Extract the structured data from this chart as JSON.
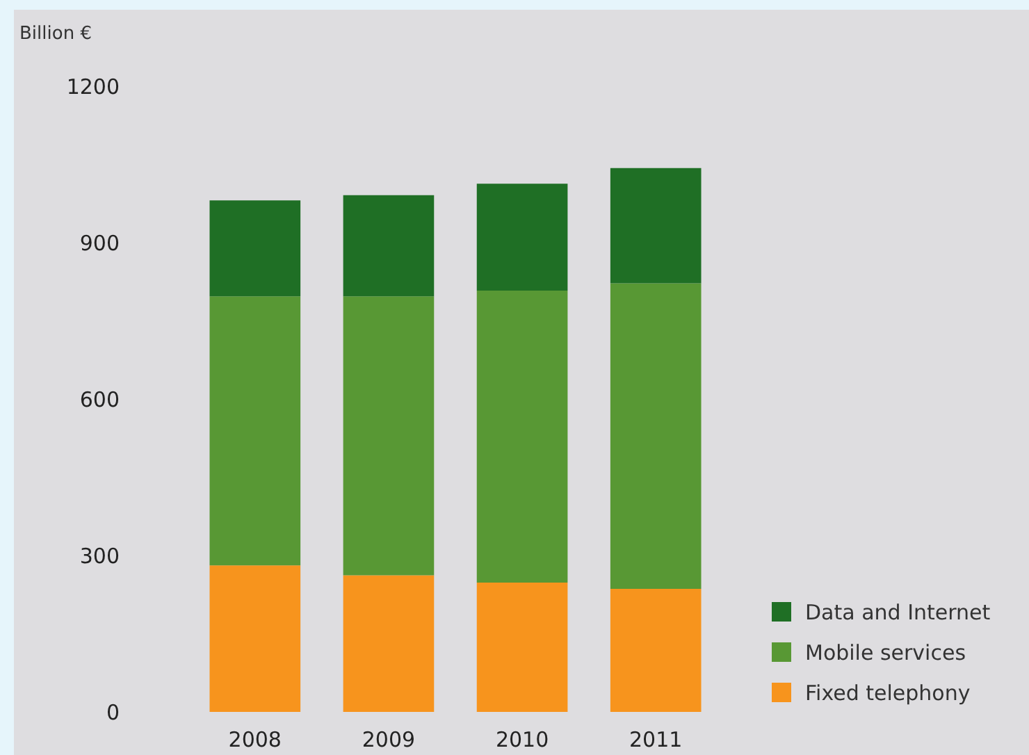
{
  "chart_data": {
    "type": "bar",
    "stacked": true,
    "ylabel": "Billion €",
    "categories": [
      "2008",
      "2009",
      "2010",
      "2011"
    ],
    "series": [
      {
        "name": "Fixed telephony",
        "color": "#f7941d",
        "values": [
          281,
          262,
          248,
          236
        ]
      },
      {
        "name": "Mobile services",
        "color": "#589834",
        "values": [
          516,
          535,
          560,
          586
        ]
      },
      {
        "name": "Data and Internet",
        "color": "#1f6f25",
        "values": [
          184,
          194,
          205,
          221
        ]
      }
    ],
    "ylim": [
      0,
      1200
    ],
    "yticks": [
      0,
      300,
      600,
      900,
      1200
    ],
    "legend": "bottom right"
  }
}
